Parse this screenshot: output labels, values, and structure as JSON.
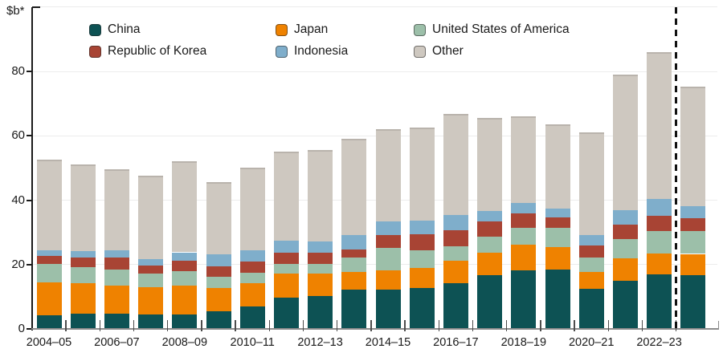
{
  "chart_data": {
    "type": "bar",
    "stacked": true,
    "title": "",
    "ylabel": "$b*",
    "xlabel": "",
    "grid": true,
    "legend_position": "top",
    "ylim": [
      0,
      100
    ],
    "y_ticks": [
      0,
      20,
      40,
      60,
      80
    ],
    "y_gridlines": [
      20,
      40,
      60,
      80,
      100
    ],
    "categories": [
      "2004–05",
      "2005–06",
      "2006–07",
      "2007–08",
      "2008–09",
      "2009–10",
      "2010–11",
      "2011–12",
      "2012–13",
      "2013–14",
      "2014–15",
      "2015–16",
      "2016–17",
      "2017–18",
      "2018–19",
      "2019–20",
      "2020–21",
      "2021–22",
      "2022–23",
      "2023–24"
    ],
    "x_axis_shown_labels": [
      "2004–05",
      "2006–07",
      "2008–09",
      "2010–11",
      "2012–13",
      "2014–15",
      "2016–17",
      "2018–19",
      "2020–21",
      "2022–23"
    ],
    "series": [
      {
        "name": "China",
        "color": "#0d5254",
        "values": [
          4.2,
          4.8,
          4.8,
          4.5,
          4.5,
          5.5,
          7.0,
          9.8,
          10.3,
          12.2,
          12.3,
          12.7,
          14.3,
          16.7,
          18.3,
          18.4,
          12.4,
          15.0,
          17.0,
          16.6
        ]
      },
      {
        "name": "Japan",
        "color": "#ef8200",
        "values": [
          10.3,
          9.5,
          8.6,
          8.4,
          8.9,
          7.2,
          7.2,
          7.3,
          7.0,
          5.5,
          6.0,
          6.3,
          6.9,
          7.0,
          7.9,
          7.1,
          5.2,
          7.0,
          6.4,
          6.7
        ]
      },
      {
        "name": "United States of America",
        "color": "#9cbfa9",
        "values": [
          5.7,
          4.8,
          5.0,
          4.3,
          4.5,
          3.6,
          3.3,
          3.2,
          2.9,
          4.4,
          6.9,
          5.4,
          4.4,
          5.0,
          5.2,
          5.8,
          4.7,
          6.0,
          7.0,
          7.0
        ]
      },
      {
        "name": "Republic of Korea",
        "color": "#a84434",
        "values": [
          2.6,
          3.2,
          3.7,
          2.4,
          3.4,
          3.2,
          3.4,
          3.5,
          3.5,
          2.6,
          3.9,
          4.9,
          5.1,
          4.7,
          4.5,
          3.4,
          3.7,
          4.4,
          4.7,
          4.2
        ]
      },
      {
        "name": "Indonesia",
        "color": "#7faecb",
        "values": [
          1.7,
          1.8,
          2.2,
          2.2,
          2.5,
          3.6,
          3.5,
          3.7,
          3.5,
          4.4,
          4.3,
          4.4,
          4.6,
          3.2,
          3.2,
          2.8,
          3.2,
          4.5,
          5.2,
          3.7
        ]
      },
      {
        "name": "Other",
        "color": "#cec8c0",
        "values": [
          28.0,
          26.9,
          25.2,
          25.7,
          28.2,
          22.4,
          25.8,
          27.5,
          28.4,
          29.9,
          28.6,
          28.8,
          31.5,
          29.0,
          26.9,
          26.0,
          31.8,
          42.0,
          45.7,
          37.1
        ]
      }
    ],
    "totals": [
      52.5,
      51.0,
      49.5,
      47.5,
      52.0,
      45.5,
      50.2,
      55.0,
      55.6,
      59.0,
      62.0,
      62.5,
      66.8,
      65.6,
      66.0,
      63.5,
      61.0,
      78.9,
      86.0,
      75.3
    ],
    "divider": {
      "style": "dashed-vertical-line",
      "after_category": "2022–23"
    },
    "legend_columns": [
      [
        "China",
        "Republic of Korea"
      ],
      [
        "Japan",
        "Indonesia"
      ],
      [
        "United States of America",
        "Other"
      ]
    ]
  }
}
